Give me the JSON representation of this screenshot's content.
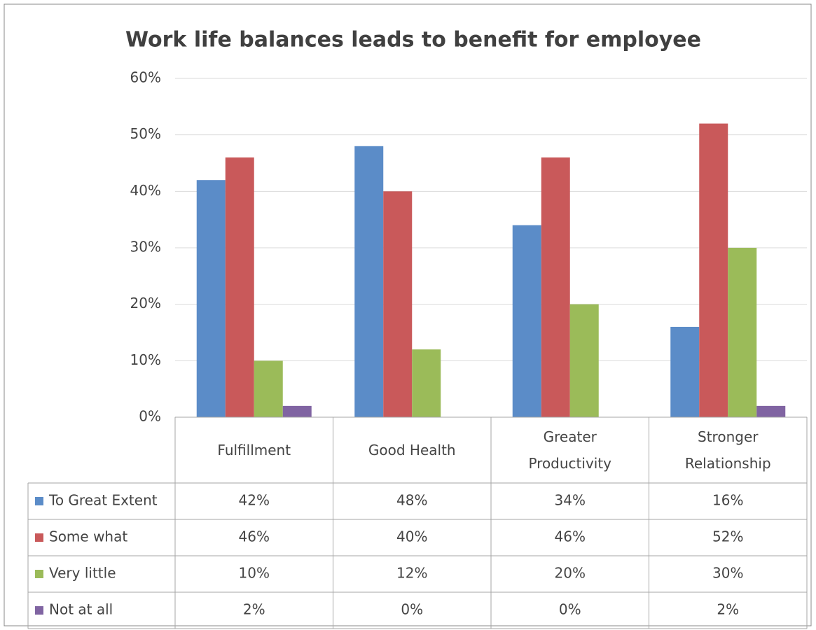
{
  "chart_data": {
    "type": "bar",
    "title": "Work life balances leads to benefit for employee",
    "categories": [
      "Fulfillment",
      "Good Health",
      "Greater Productivity",
      "Stronger Relationship"
    ],
    "series": [
      {
        "name": "To Great Extent",
        "color": "#5b8cc8",
        "values": [
          42,
          48,
          34,
          16
        ],
        "value_labels": [
          "42%",
          "48%",
          "34%",
          "16%"
        ]
      },
      {
        "name": "Some what",
        "color": "#c9595a",
        "values": [
          46,
          40,
          46,
          52
        ],
        "value_labels": [
          "46%",
          "40%",
          "46%",
          "52%"
        ]
      },
      {
        "name": "Very little",
        "color": "#9bbb59",
        "values": [
          10,
          12,
          20,
          30
        ],
        "value_labels": [
          "10%",
          "12%",
          "20%",
          "30%"
        ]
      },
      {
        "name": "Not at all",
        "color": "#8064a2",
        "values": [
          2,
          0,
          0,
          2
        ],
        "value_labels": [
          "2%",
          "0%",
          "0%",
          "2%"
        ]
      }
    ],
    "ylim": [
      0,
      60
    ],
    "yticks": [
      {
        "value": 0,
        "label": "0%"
      },
      {
        "value": 10,
        "label": "10%"
      },
      {
        "value": 20,
        "label": "20%"
      },
      {
        "value": 30,
        "label": "30%"
      },
      {
        "value": 40,
        "label": "40%"
      },
      {
        "value": 50,
        "label": "50%"
      },
      {
        "value": 60,
        "label": "60%"
      }
    ],
    "grid": true
  }
}
